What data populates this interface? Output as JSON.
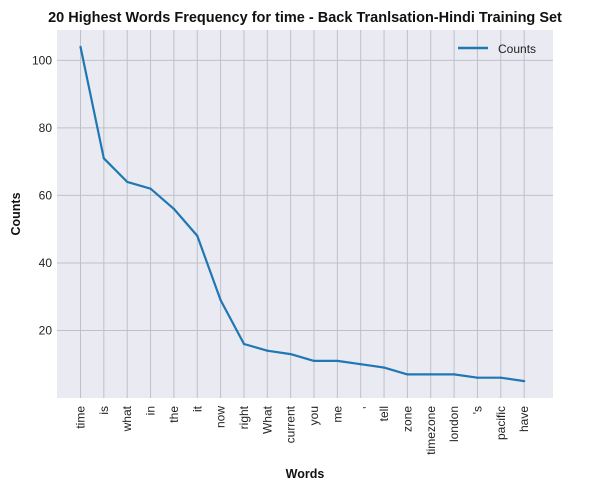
{
  "chart_data": {
    "type": "line",
    "title": "20 Highest Words Frequency for time - Back Tranlsation-Hindi Training Set",
    "xlabel": "Words",
    "ylabel": "Counts",
    "categories": [
      "time",
      "is",
      "what",
      "in",
      "the",
      "it",
      "now",
      "right",
      "What",
      "current",
      "you",
      "me",
      ",",
      "tell",
      "zone",
      "timezone",
      "london",
      "'s",
      "pacific",
      "have"
    ],
    "series": [
      {
        "name": "Counts",
        "values": [
          104,
          71,
          64,
          62,
          56,
          48,
          29,
          16,
          14,
          13,
          11,
          11,
          10,
          9,
          7,
          7,
          7,
          6,
          6,
          5
        ]
      }
    ],
    "yticks": [
      20,
      40,
      60,
      80,
      100
    ],
    "ylim": [
      0,
      109
    ],
    "grid": true,
    "legend_position": "top-right",
    "colors": {
      "line": "#1f77b4",
      "plot_bg": "#eaeaf2",
      "grid": "#c0c0c8"
    }
  }
}
